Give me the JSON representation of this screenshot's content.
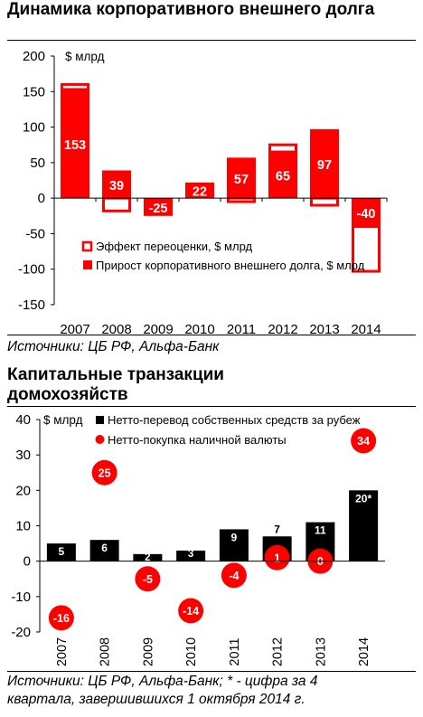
{
  "chart1": {
    "title": "Динамика корпоративного внешнего долга",
    "source": "Источники: ЦБ РФ, Альфа-Банк",
    "chart_data": {
      "type": "bar",
      "title": "Динамика корпоративного внешнего долга",
      "ylabel": "$ млрд",
      "ylim": [
        -150,
        200
      ],
      "yticks": [
        200,
        150,
        100,
        50,
        0,
        -50,
        -100,
        -150
      ],
      "categories": [
        "2007",
        "2008",
        "2009",
        "2010",
        "2011",
        "2012",
        "2013",
        "2014"
      ],
      "series": [
        {
          "name": "Прирост корпоративного внешнего долга, $ млрд",
          "color": "#ff0000",
          "values": [
            153,
            39,
            -25,
            22,
            57,
            65,
            97,
            -40
          ],
          "labels": [
            "153",
            "39",
            "-25",
            "22",
            "57",
            "65",
            "97",
            "-40"
          ]
        },
        {
          "name": "Эффект переоценки, $ млрд",
          "color": "#ff0000",
          "values": [
            7,
            -18,
            0,
            0,
            -5,
            10,
            -10,
            -63
          ]
        }
      ],
      "legend_position": "bottom-left"
    }
  },
  "chart2": {
    "title": "Капитальные транзакции домохозяйств",
    "source": "Источники: ЦБ РФ, Альфа-Банк; * - цифра за 4 квартала, завершившихся 1 октября 2014 г.",
    "chart_data": {
      "type": "bar",
      "title": "Капитальные транзакции домохозяйств",
      "ylabel": "$ млрд",
      "ylim": [
        -20,
        40
      ],
      "yticks": [
        40,
        30,
        20,
        10,
        0,
        -10,
        -20
      ],
      "categories": [
        "2007",
        "2008",
        "2009",
        "2010",
        "2011",
        "2012",
        "2013",
        "2014"
      ],
      "series": [
        {
          "name": "Нетто-перевод собственных средств за рубеж",
          "color": "#000000",
          "values": [
            5,
            6,
            2,
            3,
            9,
            7,
            11,
            20
          ],
          "labels": [
            "5",
            "6",
            "2",
            "3",
            "9",
            "7",
            "11",
            "20*"
          ]
        },
        {
          "name": "Нетто-покупка наличной валюты",
          "color": "#ff0000",
          "marker": "circle",
          "values": [
            -16,
            25,
            -5,
            -14,
            -4,
            1,
            0,
            34
          ],
          "labels": [
            "-16",
            "25",
            "-5",
            "-14",
            "-4",
            "1",
            "0",
            "34"
          ]
        }
      ],
      "legend_position": "top"
    }
  }
}
